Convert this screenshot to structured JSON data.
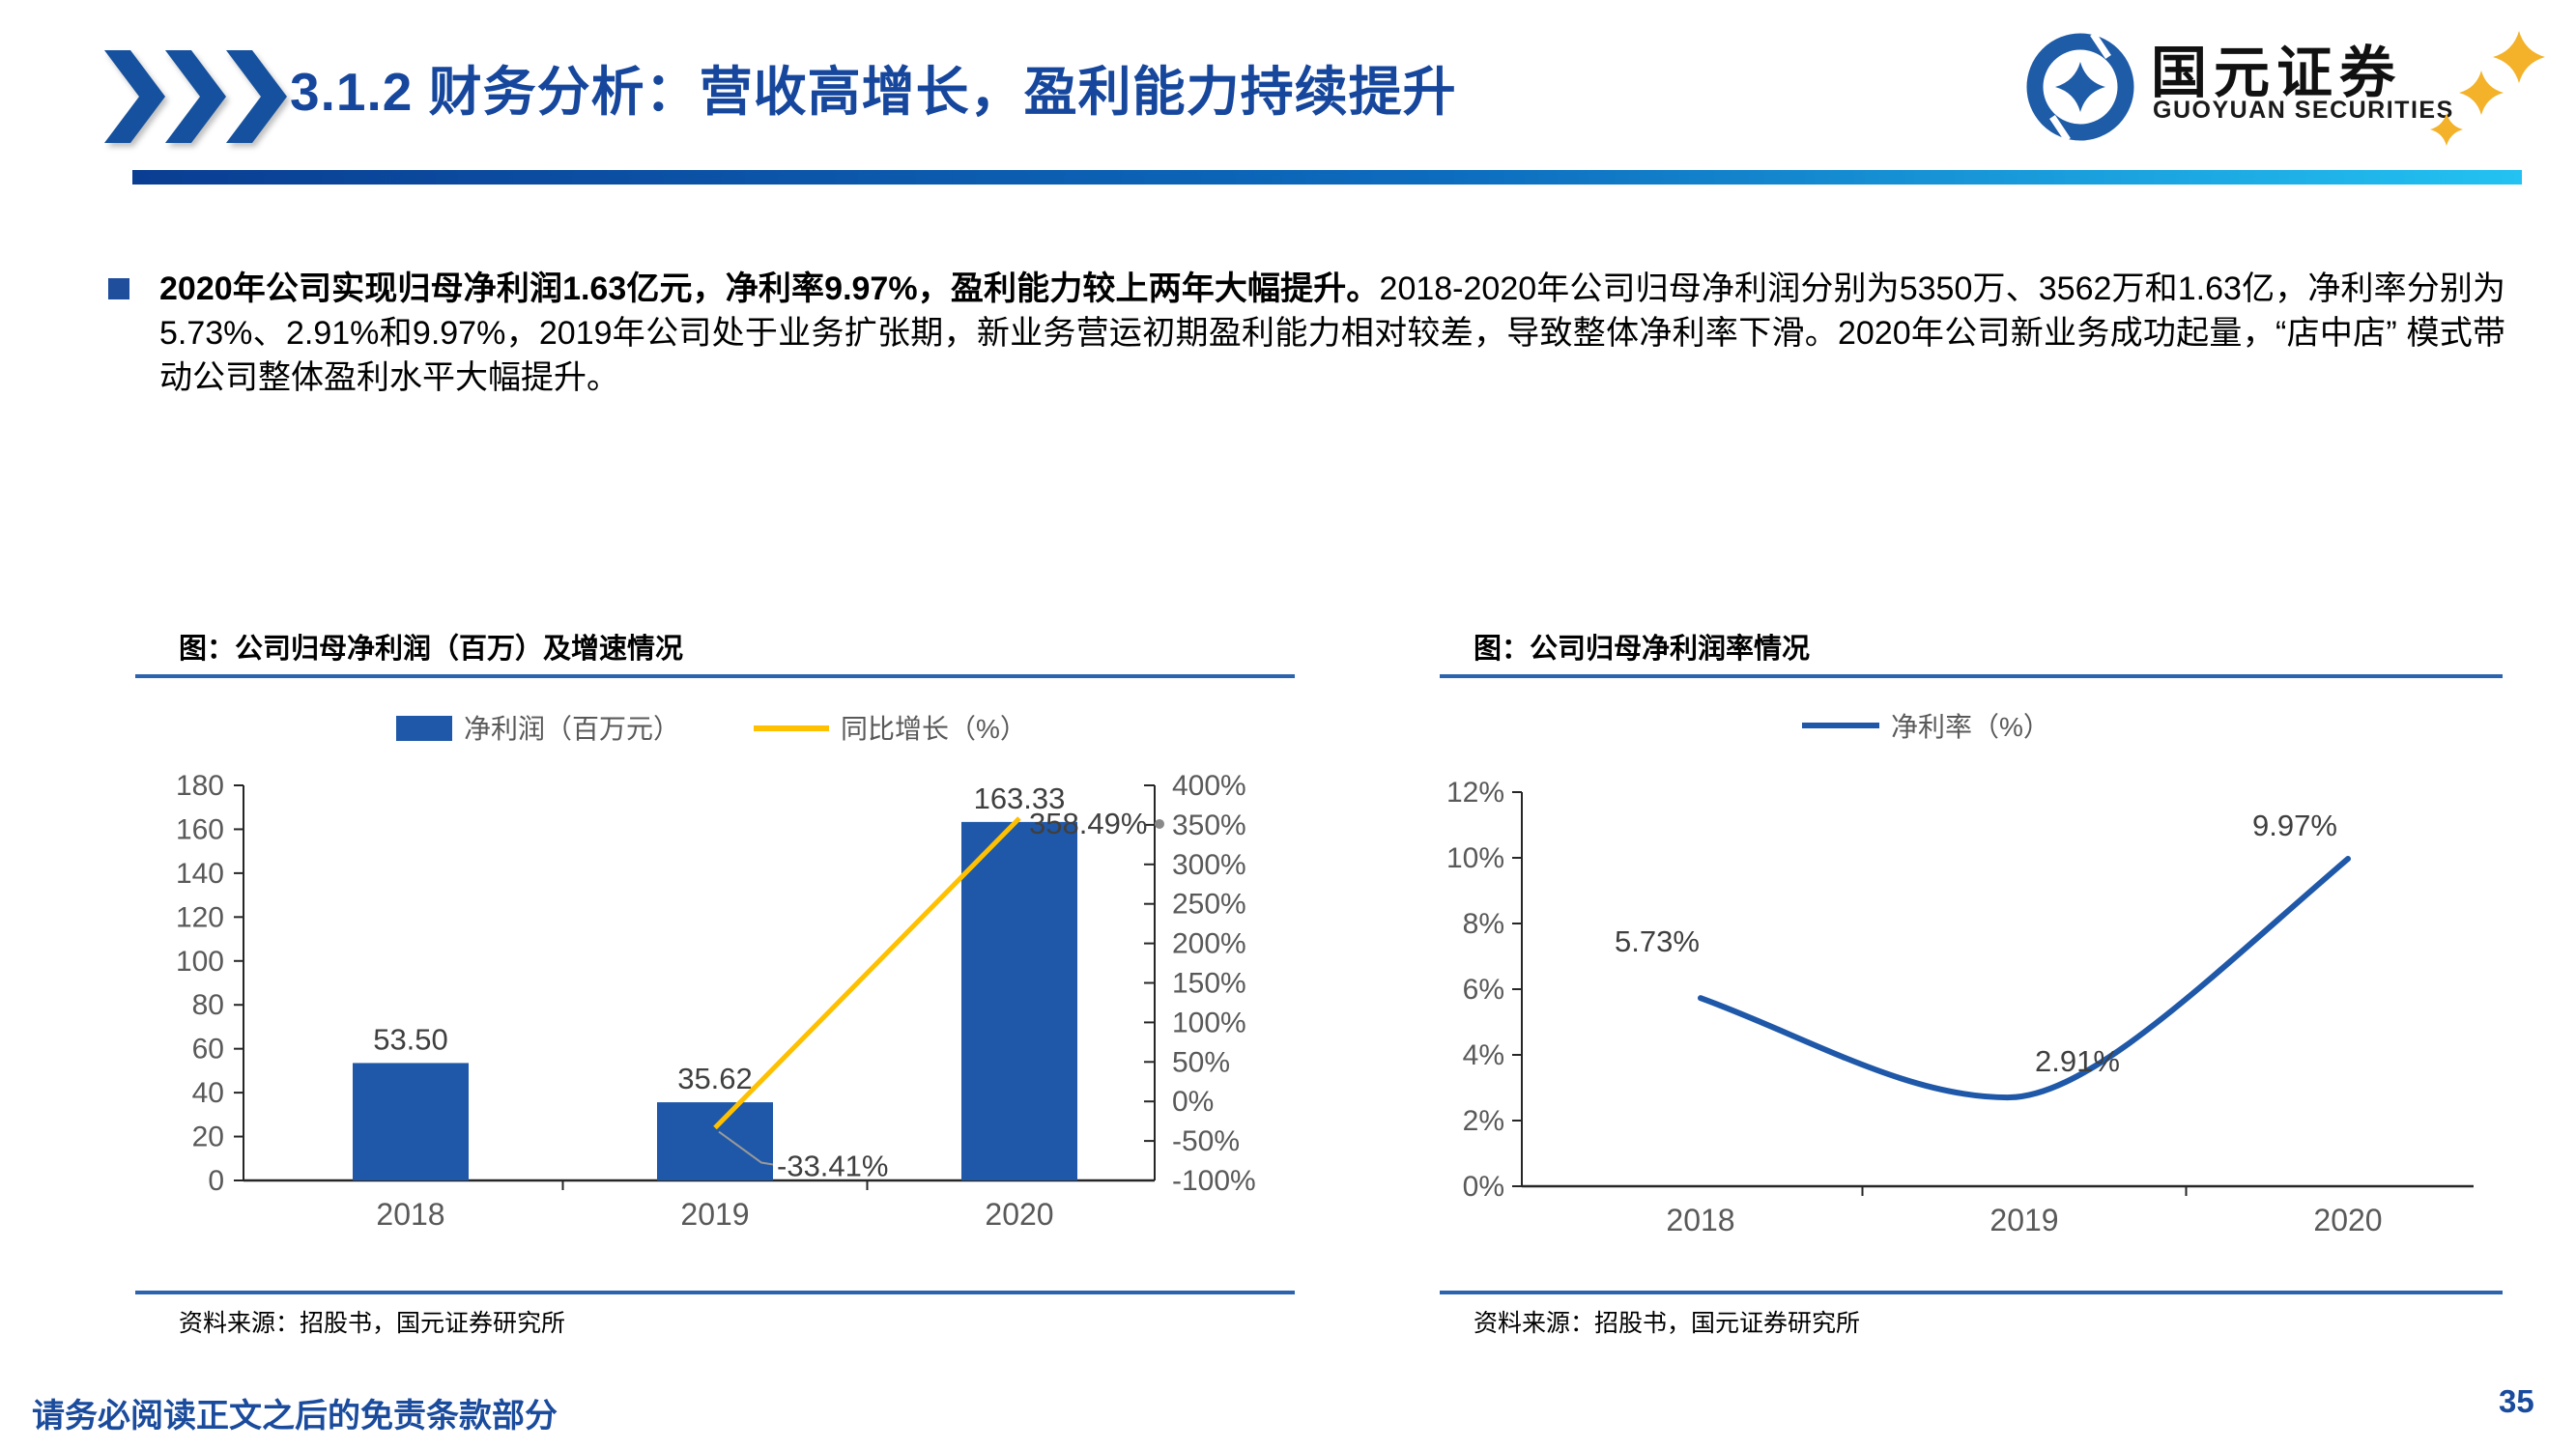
{
  "header": {
    "title": "3.1.2 财务分析：营收高增长，盈利能力持续提升",
    "logo_cn": "国元证券",
    "logo_en": "GUOYUAN SECURITIES"
  },
  "body": {
    "bullet_bold": "2020年公司实现归母净利润1.63亿元，净利率9.97%，盈利能力较上两年大幅提升。",
    "bullet_rest": "2018-2020年公司归母净利润分别为5350万、3562万和1.63亿，净利率分别为5.73%、2.91%和9.97%，2019年公司处于业务扩张期，新业务营运初期盈利能力相对较差，导致整体净利率下滑。2020年公司新业务成功起量，“店中店” 模式带动公司整体盈利水平大幅提升。"
  },
  "colors": {
    "title_blue": "#16479D",
    "bar_blue": "#1F58A8",
    "line_gold": "#FFC000",
    "rule_blue": "#2B63AE",
    "footer_blue": "#1A4B9C",
    "logo_gold": "#F3B229"
  },
  "footer": {
    "disclaimer": "请务必阅读正文之后的免责条款部分",
    "page": "35"
  },
  "chart_data": [
    {
      "type": "bar",
      "title": "图：公司归母净利润（百万）及增速情况",
      "categories": [
        "2018",
        "2019",
        "2020"
      ],
      "series": [
        {
          "name": "净利润（百万元）",
          "type": "bar",
          "axis": "left",
          "values": [
            53.5,
            35.62,
            163.33
          ],
          "labels": [
            "53.50",
            "35.62",
            "163.33"
          ],
          "color": "#1F58A8"
        },
        {
          "name": "同比增长（%）",
          "type": "line",
          "axis": "right",
          "values": [
            null,
            -33.41,
            358.49
          ],
          "labels": [
            null,
            "-33.41%",
            "358.49%"
          ],
          "color": "#FFC000"
        }
      ],
      "left_axis": {
        "min": 0,
        "max": 180,
        "step": 20,
        "ticks": [
          "180",
          "160",
          "140",
          "120",
          "100",
          "80",
          "60",
          "40",
          "20",
          "0"
        ]
      },
      "right_axis": {
        "min": -100,
        "max": 400,
        "step": 50,
        "ticks": [
          "400%",
          "350%",
          "300%",
          "250%",
          "200%",
          "150%",
          "100%",
          "50%",
          "0%",
          "-50%",
          "-100%"
        ]
      },
      "legend_position": "top",
      "grid": false,
      "source": "资料来源：招股书，国元证券研究所"
    },
    {
      "type": "line",
      "title": "图：公司归母净利润率情况",
      "categories": [
        "2018",
        "2019",
        "2020"
      ],
      "series": [
        {
          "name": "净利率（%）",
          "type": "line",
          "axis": "left",
          "values": [
            5.73,
            2.91,
            9.97
          ],
          "labels": [
            "5.73%",
            "2.91%",
            "9.97%"
          ],
          "color": "#1F58A8"
        }
      ],
      "left_axis": {
        "min": 0,
        "max": 12,
        "step": 2,
        "ticks": [
          "12%",
          "10%",
          "8%",
          "6%",
          "4%",
          "2%",
          "0%"
        ]
      },
      "legend_position": "top",
      "grid": false,
      "source": "资料来源：招股书，国元证券研究所"
    }
  ]
}
